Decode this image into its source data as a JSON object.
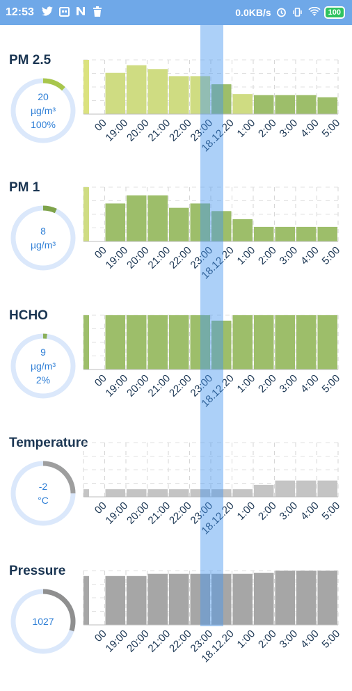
{
  "status_bar": {
    "time": "12:53",
    "net_speed": "0.0KB/s",
    "battery": "100",
    "icons": [
      "twitter-icon",
      "calendar-icon",
      "n-icon",
      "trash-icon",
      "alarm-icon",
      "vibrate-icon",
      "wifi-icon",
      "battery-icon"
    ]
  },
  "time_axis": [
    "00",
    "19:00",
    "20:00",
    "21:00",
    "22:00",
    "23:00",
    "18.12.20",
    "1:00",
    "2:00",
    "3:00",
    "4:00",
    "5:00"
  ],
  "colors": {
    "yellow": "#cfdc82",
    "green": "#9dbe6a",
    "gray": "#b9b9b9",
    "darkgray": "#9e9e9e",
    "gauge_track": "#dbe8fb",
    "accent": "#2f7fd6"
  },
  "sections": [
    {
      "title": "PM 2.5",
      "gauge": {
        "line1": "20",
        "line2": "µg/m³",
        "line3": "100%",
        "fraction": 0.12,
        "color": "#a8c64c"
      },
      "chart_data": {
        "type": "bar",
        "x": [
          "00",
          "19:00",
          "20:00",
          "21:00",
          "22:00",
          "23:00",
          "18.12.20",
          "1:00",
          "2:00",
          "3:00",
          "4:00",
          "5:00"
        ],
        "values": [
          100,
          76,
          90,
          83,
          70,
          70,
          55,
          37,
          35,
          35,
          35,
          31
        ],
        "ylim": [
          0,
          100
        ],
        "bar_colors": [
          "#dbe27e",
          "#cfdc82",
          "#cfdc82",
          "#cfdc82",
          "#cfdc82",
          "#cfdc82",
          "#9dbe6a",
          "#cfdc82",
          "#9dbe6a",
          "#9dbe6a",
          "#9dbe6a",
          "#9dbe6a"
        ]
      }
    },
    {
      "title": "PM 1",
      "gauge": {
        "line1": "8",
        "line2": "µg/m³",
        "line3": "",
        "fraction": 0.07,
        "color": "#7ea34a"
      },
      "chart_data": {
        "type": "bar",
        "x": [
          "00",
          "19:00",
          "20:00",
          "21:00",
          "22:00",
          "23:00",
          "18.12.20",
          "1:00",
          "2:00",
          "3:00",
          "4:00",
          "5:00"
        ],
        "values": [
          100,
          70,
          85,
          85,
          62,
          70,
          56,
          41,
          27,
          27,
          27,
          27
        ],
        "ylim": [
          0,
          100
        ],
        "bar_colors": [
          "#cfdc82",
          "#9dbe6a",
          "#9dbe6a",
          "#9dbe6a",
          "#9dbe6a",
          "#9dbe6a",
          "#9dbe6a",
          "#9dbe6a",
          "#9dbe6a",
          "#9dbe6a",
          "#9dbe6a",
          "#9dbe6a"
        ]
      }
    },
    {
      "title": "HCHO",
      "gauge": {
        "line1": "9",
        "line2": "µg/m³",
        "line3": "2%",
        "fraction": 0.02,
        "color": "#8bb05a"
      },
      "chart_data": {
        "type": "bar",
        "x": [
          "00",
          "19:00",
          "20:00",
          "21:00",
          "22:00",
          "23:00",
          "18.12.20",
          "1:00",
          "2:00",
          "3:00",
          "4:00",
          "5:00"
        ],
        "values": [
          100,
          100,
          100,
          100,
          100,
          100,
          90,
          100,
          100,
          100,
          100,
          100
        ],
        "ylim": [
          0,
          100
        ],
        "bar_colors": [
          "#9dbe6a",
          "#9dbe6a",
          "#9dbe6a",
          "#9dbe6a",
          "#9dbe6a",
          "#9dbe6a",
          "#9dbe6a",
          "#9dbe6a",
          "#9dbe6a",
          "#9dbe6a",
          "#9dbe6a",
          "#9dbe6a"
        ]
      }
    },
    {
      "title": "Temperature",
      "gauge": {
        "line1": "-2",
        "line2": "°C",
        "line3": "",
        "fraction": 0.25,
        "color": "#9e9e9e"
      },
      "chart_data": {
        "type": "bar",
        "x": [
          "00",
          "19:00",
          "20:00",
          "21:00",
          "22:00",
          "23:00",
          "18.12.20",
          "1:00",
          "2:00",
          "3:00",
          "4:00",
          "5:00"
        ],
        "values": [
          14,
          14,
          14,
          14,
          14,
          14,
          14,
          14,
          22,
          30,
          30,
          30
        ],
        "ylim": [
          0,
          100
        ],
        "bar_colors": [
          "#c4c4c4",
          "#c4c4c4",
          "#c4c4c4",
          "#c4c4c4",
          "#c4c4c4",
          "#c4c4c4",
          "#c4c4c4",
          "#c4c4c4",
          "#c4c4c4",
          "#c4c4c4",
          "#c4c4c4",
          "#c4c4c4"
        ]
      }
    },
    {
      "title": "Pressure",
      "gauge": {
        "line1": "1027",
        "line2": "",
        "line3": "",
        "fraction": 0.3,
        "color": "#8f8f8f"
      },
      "chart_data": {
        "type": "bar",
        "x": [
          "00",
          "19:00",
          "20:00",
          "21:00",
          "22:00",
          "23:00",
          "18.12.20",
          "1:00",
          "2:00",
          "3:00",
          "4:00",
          "5:00"
        ],
        "values": [
          90,
          90,
          90,
          94,
          94,
          94,
          94,
          94,
          96,
          100,
          100,
          100
        ],
        "ylim": [
          0,
          100
        ],
        "bar_colors": [
          "#a6a6a6",
          "#a6a6a6",
          "#a6a6a6",
          "#a6a6a6",
          "#a6a6a6",
          "#a6a6a6",
          "#a6a6a6",
          "#a6a6a6",
          "#a6a6a6",
          "#a6a6a6",
          "#a6a6a6",
          "#a6a6a6"
        ]
      }
    }
  ]
}
